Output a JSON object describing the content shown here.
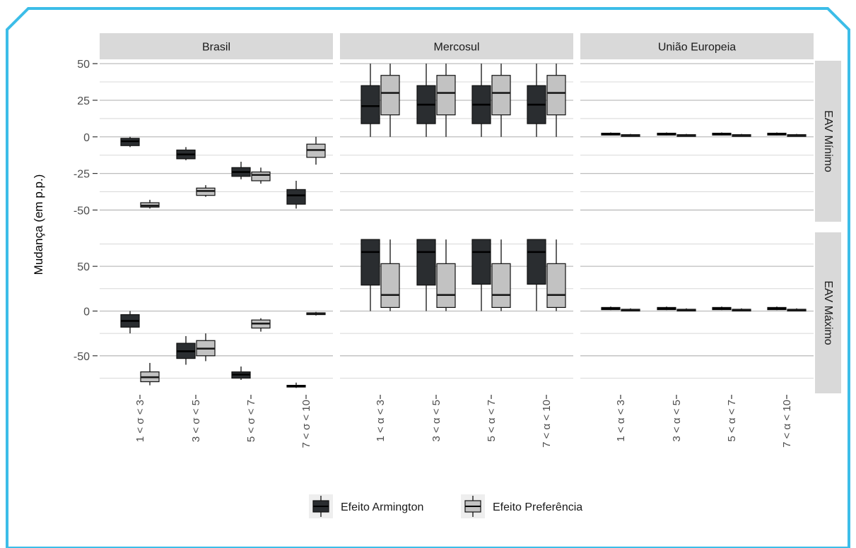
{
  "colors": {
    "frame": "#3cbde8",
    "strip": "#d9d9d9",
    "grid_major": "#bdbdbd",
    "grid_minor": "#d8d8d8",
    "armington": "#2a2d30",
    "preferencia": "#c2c2c2",
    "text": "#4d4d4d"
  },
  "chart_data": {
    "type": "boxplot",
    "ylabel": "Mudança (em p.p.)",
    "columns": [
      "Brasil",
      "Mercosul",
      "União Europeia"
    ],
    "rows": [
      "EAV Mínimo",
      "EAV Máximo"
    ],
    "x_tick_labels": {
      "Brasil": [
        "1 < σ < 3",
        "3 < σ < 5",
        "5 < σ < 7",
        "7 < σ < 10"
      ],
      "Mercosul": [
        "1 < α < 3",
        "3 < α < 5",
        "5 < α < 7",
        "7 < α < 10"
      ],
      "União Europeia": [
        "1 < α < 3",
        "3 < α < 5",
        "5 < α < 7",
        "7 < α < 10"
      ]
    },
    "y_axes": {
      "EAV Mínimo": {
        "ylim": [
          -58,
          52
        ],
        "ticks": [
          -50,
          -25,
          0,
          25,
          50
        ],
        "tick_labels": [
          "-50",
          "-25",
          "0",
          "25",
          "50"
        ]
      },
      "EAV Máximo": {
        "ylim": [
          -92,
          88
        ],
        "ticks": [
          -50,
          0,
          50
        ],
        "tick_labels": [
          "-50",
          "0",
          "50"
        ]
      }
    },
    "legend": {
      "position": "bottom",
      "entries": [
        {
          "key": "armington",
          "label": "Efeito Armington"
        },
        {
          "key": "preferencia",
          "label": "Efeito Preferência"
        }
      ]
    },
    "boxes": {
      "EAV Mínimo": {
        "Brasil": {
          "armington": [
            [
              -7,
              -6,
              -3,
              -1,
              0
            ],
            [
              -16,
              -15,
              -12,
              -9,
              -7
            ],
            [
              -29,
              -27,
              -24,
              -21,
              -17
            ],
            [
              -49,
              -46,
              -40,
              -36,
              -30
            ]
          ],
          "preferencia": [
            [
              -49,
              -48,
              -47,
              -45,
              -43
            ],
            [
              -41,
              -40,
              -37,
              -35,
              -33
            ],
            [
              -32,
              -30,
              -26,
              -24,
              -21
            ],
            [
              -19,
              -14,
              -9,
              -5,
              0
            ]
          ]
        },
        "Mercosul": {
          "armington": [
            [
              0,
              9,
              21,
              35,
              50
            ],
            [
              0,
              9,
              22,
              35,
              50
            ],
            [
              0,
              9,
              22,
              35,
              50
            ],
            [
              0,
              9,
              22,
              35,
              50
            ]
          ],
          "preferencia": [
            [
              0,
              15,
              30,
              42,
              50
            ],
            [
              0,
              15,
              30,
              42,
              50
            ],
            [
              0,
              15,
              30,
              42,
              50
            ],
            [
              0,
              15,
              30,
              42,
              50
            ]
          ]
        },
        "União Europeia": {
          "armington": [
            [
              1,
              1.2,
              2,
              2.5,
              3
            ],
            [
              1,
              1.2,
              2,
              2.5,
              3
            ],
            [
              1,
              1.2,
              2,
              2.5,
              3
            ],
            [
              1,
              1.2,
              2,
              2.5,
              3
            ]
          ],
          "preferencia": [
            [
              0.5,
              0.8,
              1,
              1.5,
              2
            ],
            [
              0.5,
              0.8,
              1,
              1.5,
              2
            ],
            [
              0.5,
              0.8,
              1,
              1.5,
              2
            ],
            [
              0.5,
              0.8,
              1,
              1.5,
              2
            ]
          ]
        }
      },
      "EAV Máximo": {
        "Brasil": {
          "armington": [
            [
              -25,
              -18,
              -11,
              -4,
              0
            ],
            [
              -60,
              -53,
              -45,
              -36,
              -28
            ],
            [
              -77,
              -75,
              -71,
              -68,
              -62
            ],
            [
              -86,
              -85,
              -84,
              -83,
              -80
            ]
          ],
          "preferencia": [
            [
              -83,
              -79,
              -74,
              -68,
              -58
            ],
            [
              -56,
              -50,
              -42,
              -33,
              -25
            ],
            [
              -23,
              -19,
              -14,
              -10,
              -8
            ],
            [
              -5,
              -4,
              -3,
              -2,
              -1
            ]
          ]
        },
        "Mercosul": {
          "armington": [
            [
              0,
              29,
              66,
              80,
              80
            ],
            [
              0,
              29,
              66,
              80,
              80
            ],
            [
              0,
              30,
              66,
              80,
              80
            ],
            [
              0,
              30,
              66,
              80,
              80
            ]
          ],
          "preferencia": [
            [
              0,
              4,
              18,
              53,
              80
            ],
            [
              0,
              4,
              18,
              53,
              80
            ],
            [
              0,
              4,
              18,
              53,
              80
            ],
            [
              0,
              4,
              18,
              53,
              80
            ]
          ]
        },
        "União Europeia": {
          "armington": [
            [
              1,
              1.5,
              3,
              4,
              5
            ],
            [
              1,
              1.5,
              3,
              4,
              5
            ],
            [
              1,
              1.5,
              3,
              4,
              5
            ],
            [
              1,
              1.5,
              3,
              4,
              5
            ]
          ],
          "preferencia": [
            [
              0,
              0.5,
              1,
              2,
              3
            ],
            [
              0,
              0.5,
              1,
              2,
              3
            ],
            [
              0,
              0.5,
              1,
              2,
              3
            ],
            [
              0,
              0.5,
              1,
              2,
              3
            ]
          ]
        }
      }
    }
  }
}
